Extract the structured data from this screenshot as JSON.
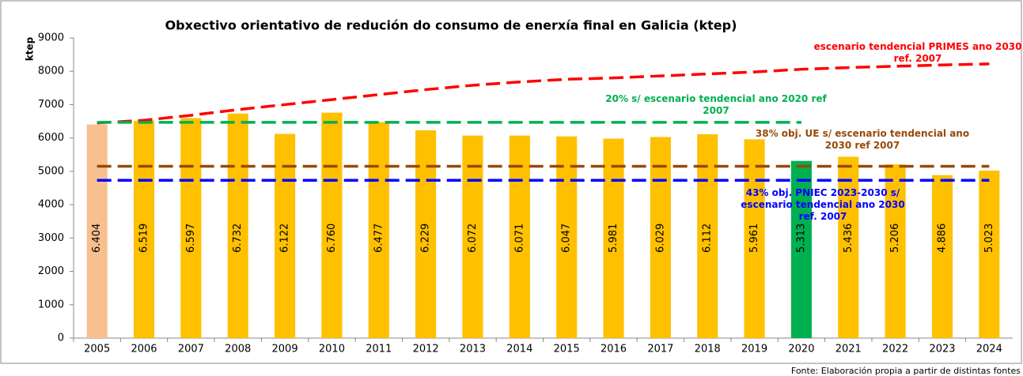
{
  "chart_data": {
    "type": "bar",
    "title": "Obxectivo orientativo de redución do consumo de enerxía final en Galicia (ktep)",
    "y_label": "ktep",
    "source": "Fonte: Elaboración propia a partir de distintas fontes",
    "categories": [
      "2005",
      "2006",
      "2007",
      "2008",
      "2009",
      "2010",
      "2011",
      "2012",
      "2013",
      "2014",
      "2015",
      "2016",
      "2017",
      "2018",
      "2019",
      "2020",
      "2021",
      "2022",
      "2023",
      "2024"
    ],
    "values": [
      6404,
      6519,
      6597,
      6732,
      6122,
      6760,
      6477,
      6229,
      6072,
      6071,
      6047,
      5981,
      6029,
      6112,
      5961,
      5313,
      5436,
      5206,
      4886,
      5023
    ],
    "value_labels": [
      "6.404",
      "6.519",
      "6.597",
      "6.732",
      "6.122",
      "6.760",
      "6.477",
      "6.229",
      "6.072",
      "6.071",
      "6.047",
      "5.981",
      "6.029",
      "6.112",
      "5.961",
      "5.313",
      "5.436",
      "5.206",
      "4.886",
      "5.023"
    ],
    "colors": [
      "#f8c08f",
      "#ffc000",
      "#ffc000",
      "#ffc000",
      "#ffc000",
      "#ffc000",
      "#ffc000",
      "#ffc000",
      "#ffc000",
      "#ffc000",
      "#ffc000",
      "#ffc000",
      "#ffc000",
      "#ffc000",
      "#ffc000",
      "#00b050",
      "#ffc000",
      "#ffc000",
      "#ffc000",
      "#ffc000"
    ],
    "series": [
      {
        "name": "escenario tendencial PRIMES ano 2030 ref. 2007",
        "color": "#ff0000",
        "values": [
          6450,
          6530,
          6680,
          6850,
          7000,
          7150,
          7300,
          7450,
          7580,
          7680,
          7760,
          7800,
          7860,
          7920,
          7980,
          8060,
          8110,
          8150,
          8190,
          8220
        ]
      },
      {
        "name": "20% s/ escenario tendencial ano 2020 ref 2007",
        "color": "#00b050",
        "values": [
          6470,
          6470,
          6470,
          6470,
          6470,
          6470,
          6470,
          6470,
          6470,
          6470,
          6470,
          6470,
          6470,
          6470,
          6470,
          6470,
          null,
          null,
          null,
          null
        ]
      },
      {
        "name": "38% obj. UE s/ escenario tendencial ano 2030 ref 2007",
        "color": "#984807",
        "values": [
          5150,
          5150,
          5150,
          5150,
          5150,
          5150,
          5150,
          5150,
          5150,
          5150,
          5150,
          5150,
          5150,
          5150,
          5150,
          5150,
          5150,
          5150,
          5150,
          5150
        ]
      },
      {
        "name": "43% obj. PNIEC 2023-2030 s/ escenario tendencial ano 2030 ref. 2007",
        "color": "#0000ff",
        "values": [
          4730,
          4730,
          4730,
          4730,
          4730,
          4730,
          4730,
          4730,
          4730,
          4730,
          4730,
          4730,
          4730,
          4730,
          4730,
          4730,
          4730,
          4730,
          4730,
          4730
        ]
      }
    ],
    "ylim": [
      0,
      9000
    ],
    "yticks": [
      0,
      1000,
      2000,
      3000,
      4000,
      5000,
      6000,
      7000,
      8000,
      9000
    ]
  }
}
